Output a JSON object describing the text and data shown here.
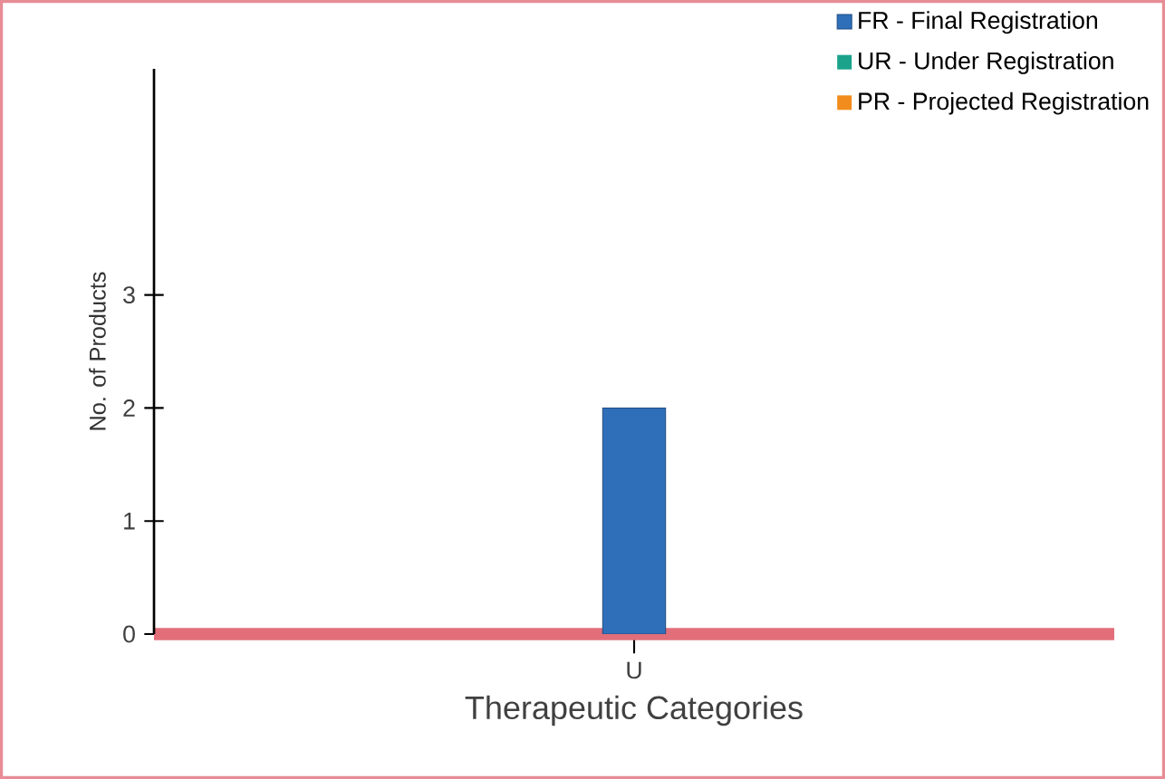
{
  "chart_data": {
    "type": "bar",
    "xlabel": "Therapeutic Categories",
    "ylabel": "No. of Products",
    "categories": [
      "U"
    ],
    "series": [
      {
        "name": "FR - Final Registration",
        "color": "#2f6fba",
        "values": [
          2
        ]
      },
      {
        "name": "UR - Under Registration",
        "color": "#1aa38a",
        "values": [
          null
        ]
      },
      {
        "name": "PR - Projected Registration",
        "color": "#f28c1c",
        "values": [
          null
        ]
      }
    ],
    "ylim": [
      0,
      5
    ],
    "yticks": [
      0,
      1,
      2,
      3
    ],
    "legend": "top right"
  }
}
